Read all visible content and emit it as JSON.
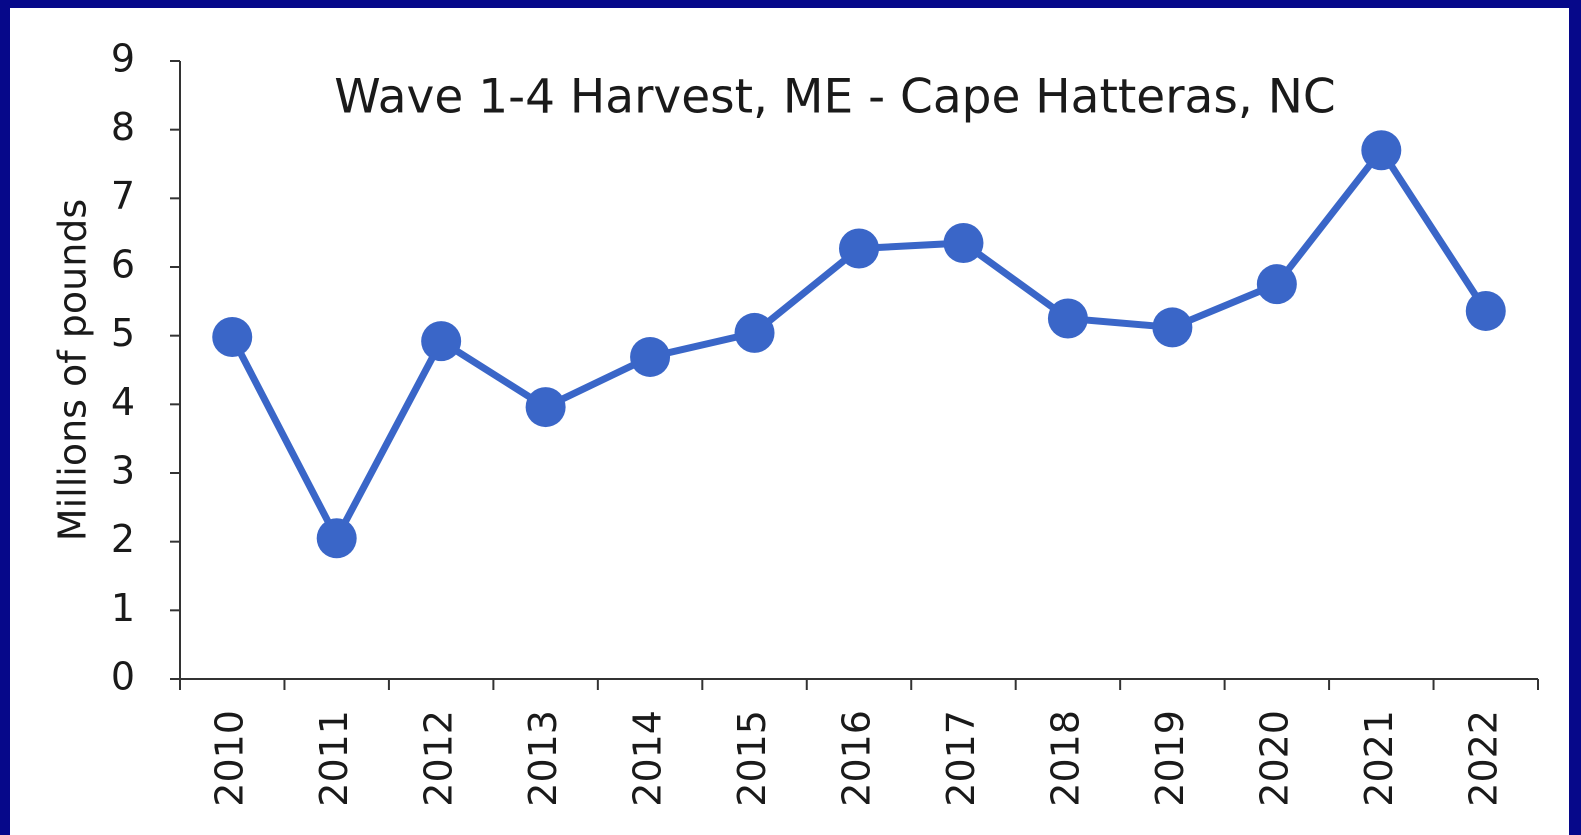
{
  "chart_data": {
    "type": "line",
    "title": "Wave 1-4 Harvest, ME - Cape Hatteras, NC",
    "y_label": "Millions of pounds",
    "categories": [
      "2010",
      "2011",
      "2012",
      "2013",
      "2014",
      "2015",
      "2016",
      "2017",
      "2018",
      "2019",
      "2020",
      "2021",
      "2022"
    ],
    "series": [
      {
        "name": "Harvest",
        "color": "#3a66c8",
        "values": [
          4.98,
          2.05,
          4.92,
          3.96,
          4.69,
          5.04,
          6.27,
          6.35,
          5.25,
          5.12,
          5.75,
          7.7,
          5.36
        ]
      }
    ],
    "ylim": [
      0,
      9
    ],
    "yticks": [
      0,
      1,
      2,
      3,
      4,
      5,
      6,
      7,
      8,
      9
    ],
    "grid": false
  }
}
